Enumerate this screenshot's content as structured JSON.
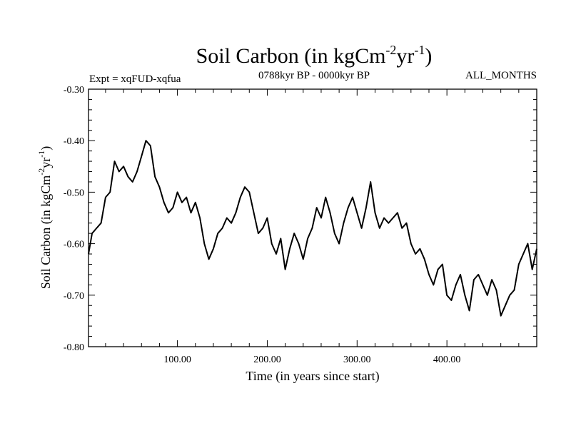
{
  "chart_data": {
    "type": "line",
    "title": "Soil Carbon (in kgCm",
    "title_sup1": "-2",
    "title_mid": "yr",
    "title_sup2": "-1",
    "title_end": ")",
    "subtitle_left": "Expt = xqFUD-xqfua",
    "subtitle_center": "0788kyr BP - 0000kyr BP",
    "subtitle_right": "ALL_MONTHS",
    "xlabel": "Time (in years since start)",
    "ylabel_pre": "Soil Carbon (in kgCm",
    "ylabel_sup1": "-2",
    "ylabel_mid": "yr",
    "ylabel_sup2": "-1",
    "ylabel_end": ")",
    "xlim": [
      1,
      500
    ],
    "ylim": [
      -0.8,
      -0.3
    ],
    "x_ticks": [
      100,
      200,
      300,
      400
    ],
    "x_tick_labels": [
      "100.00",
      "200.00",
      "300.00",
      "400.00"
    ],
    "y_ticks": [
      -0.8,
      -0.7,
      -0.6,
      -0.5,
      -0.4,
      -0.3
    ],
    "y_tick_labels": [
      "-0.80",
      "-0.70",
      "-0.60",
      "-0.50",
      "-0.40",
      "-0.30"
    ],
    "grid": false,
    "line_color": "#000000",
    "series": [
      {
        "name": "soil_carbon",
        "x": [
          1,
          5,
          10,
          15,
          20,
          25,
          30,
          35,
          40,
          45,
          50,
          55,
          60,
          65,
          70,
          75,
          80,
          85,
          90,
          95,
          100,
          105,
          110,
          115,
          120,
          125,
          130,
          135,
          140,
          145,
          150,
          155,
          160,
          165,
          170,
          175,
          180,
          185,
          190,
          195,
          200,
          205,
          210,
          215,
          220,
          225,
          230,
          235,
          240,
          245,
          250,
          255,
          260,
          265,
          270,
          275,
          280,
          285,
          290,
          295,
          300,
          305,
          310,
          315,
          320,
          325,
          330,
          335,
          340,
          345,
          350,
          355,
          360,
          365,
          370,
          375,
          380,
          385,
          390,
          395,
          400,
          405,
          410,
          415,
          420,
          425,
          430,
          435,
          440,
          445,
          450,
          455,
          460,
          465,
          470,
          475,
          480,
          485,
          490,
          495,
          500
        ],
        "values": [
          -0.62,
          -0.58,
          -0.57,
          -0.56,
          -0.51,
          -0.5,
          -0.44,
          -0.46,
          -0.45,
          -0.47,
          -0.48,
          -0.46,
          -0.43,
          -0.4,
          -0.41,
          -0.47,
          -0.49,
          -0.52,
          -0.54,
          -0.53,
          -0.5,
          -0.52,
          -0.51,
          -0.54,
          -0.52,
          -0.55,
          -0.6,
          -0.63,
          -0.61,
          -0.58,
          -0.57,
          -0.55,
          -0.56,
          -0.54,
          -0.51,
          -0.49,
          -0.5,
          -0.54,
          -0.58,
          -0.57,
          -0.55,
          -0.6,
          -0.62,
          -0.59,
          -0.65,
          -0.61,
          -0.58,
          -0.6,
          -0.63,
          -0.59,
          -0.57,
          -0.53,
          -0.55,
          -0.51,
          -0.54,
          -0.58,
          -0.6,
          -0.56,
          -0.53,
          -0.51,
          -0.54,
          -0.57,
          -0.53,
          -0.48,
          -0.54,
          -0.57,
          -0.55,
          -0.56,
          -0.55,
          -0.54,
          -0.57,
          -0.56,
          -0.6,
          -0.62,
          -0.61,
          -0.63,
          -0.66,
          -0.68,
          -0.65,
          -0.64,
          -0.7,
          -0.71,
          -0.68,
          -0.66,
          -0.7,
          -0.73,
          -0.67,
          -0.66,
          -0.68,
          -0.7,
          -0.67,
          -0.69,
          -0.74,
          -0.72,
          -0.7,
          -0.69,
          -0.64,
          -0.62,
          -0.6,
          -0.65,
          -0.61
        ]
      }
    ]
  }
}
